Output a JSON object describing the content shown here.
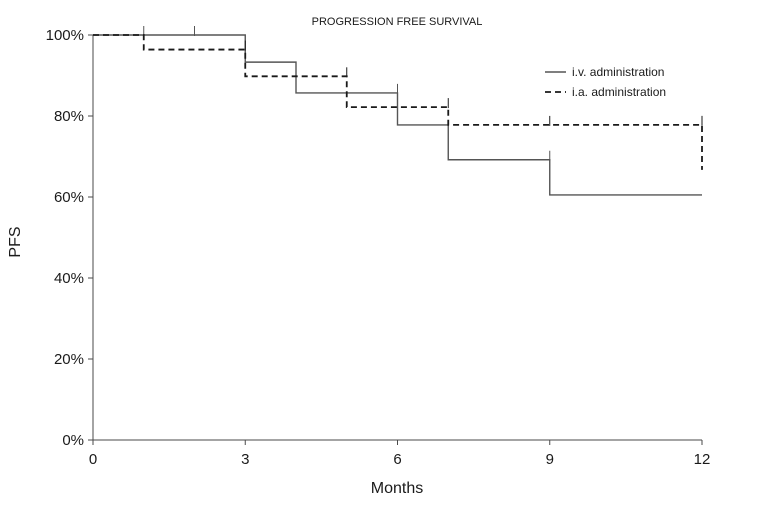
{
  "chart_data": {
    "type": "line",
    "title": "PROGRESSION FREE SURVIVAL",
    "xlabel": "Months",
    "ylabel": "PFS",
    "xlim": [
      0,
      12
    ],
    "ylim": [
      0,
      100
    ],
    "x_ticks": [
      "0",
      "3",
      "6",
      "9",
      "12"
    ],
    "x_tick_values": [
      0,
      3,
      6,
      9,
      12
    ],
    "y_ticks": [
      "0%",
      "20%",
      "40%",
      "60%",
      "80%",
      "100%"
    ],
    "y_tick_values": [
      0,
      20,
      40,
      60,
      80,
      100
    ],
    "grid": false,
    "legend_position": "top-right",
    "series": [
      {
        "name": "i.v. administration",
        "style": "solid",
        "color": "#555555",
        "steps": [
          [
            0,
            100
          ],
          [
            3,
            93.3
          ],
          [
            4,
            85.7
          ],
          [
            6,
            77.8
          ],
          [
            7,
            69.2
          ],
          [
            9,
            60.5
          ],
          [
            12,
            60.5
          ]
        ],
        "censored": [
          [
            1,
            100
          ],
          [
            2,
            100
          ],
          [
            6,
            85.7
          ],
          [
            9,
            69.2
          ]
        ]
      },
      {
        "name": "i.a. administration",
        "style": "dashed",
        "color": "#1a1a1a",
        "steps": [
          [
            0,
            100
          ],
          [
            1,
            96.4
          ],
          [
            3,
            89.8
          ],
          [
            5,
            82.2
          ],
          [
            7,
            77.8
          ],
          [
            12,
            77.8
          ],
          [
            12,
            66.7
          ]
        ],
        "censored": [
          [
            3,
            96.4
          ],
          [
            5,
            89.8
          ],
          [
            7,
            82.2
          ],
          [
            9,
            77.8
          ],
          [
            12,
            77.8
          ]
        ]
      }
    ]
  }
}
